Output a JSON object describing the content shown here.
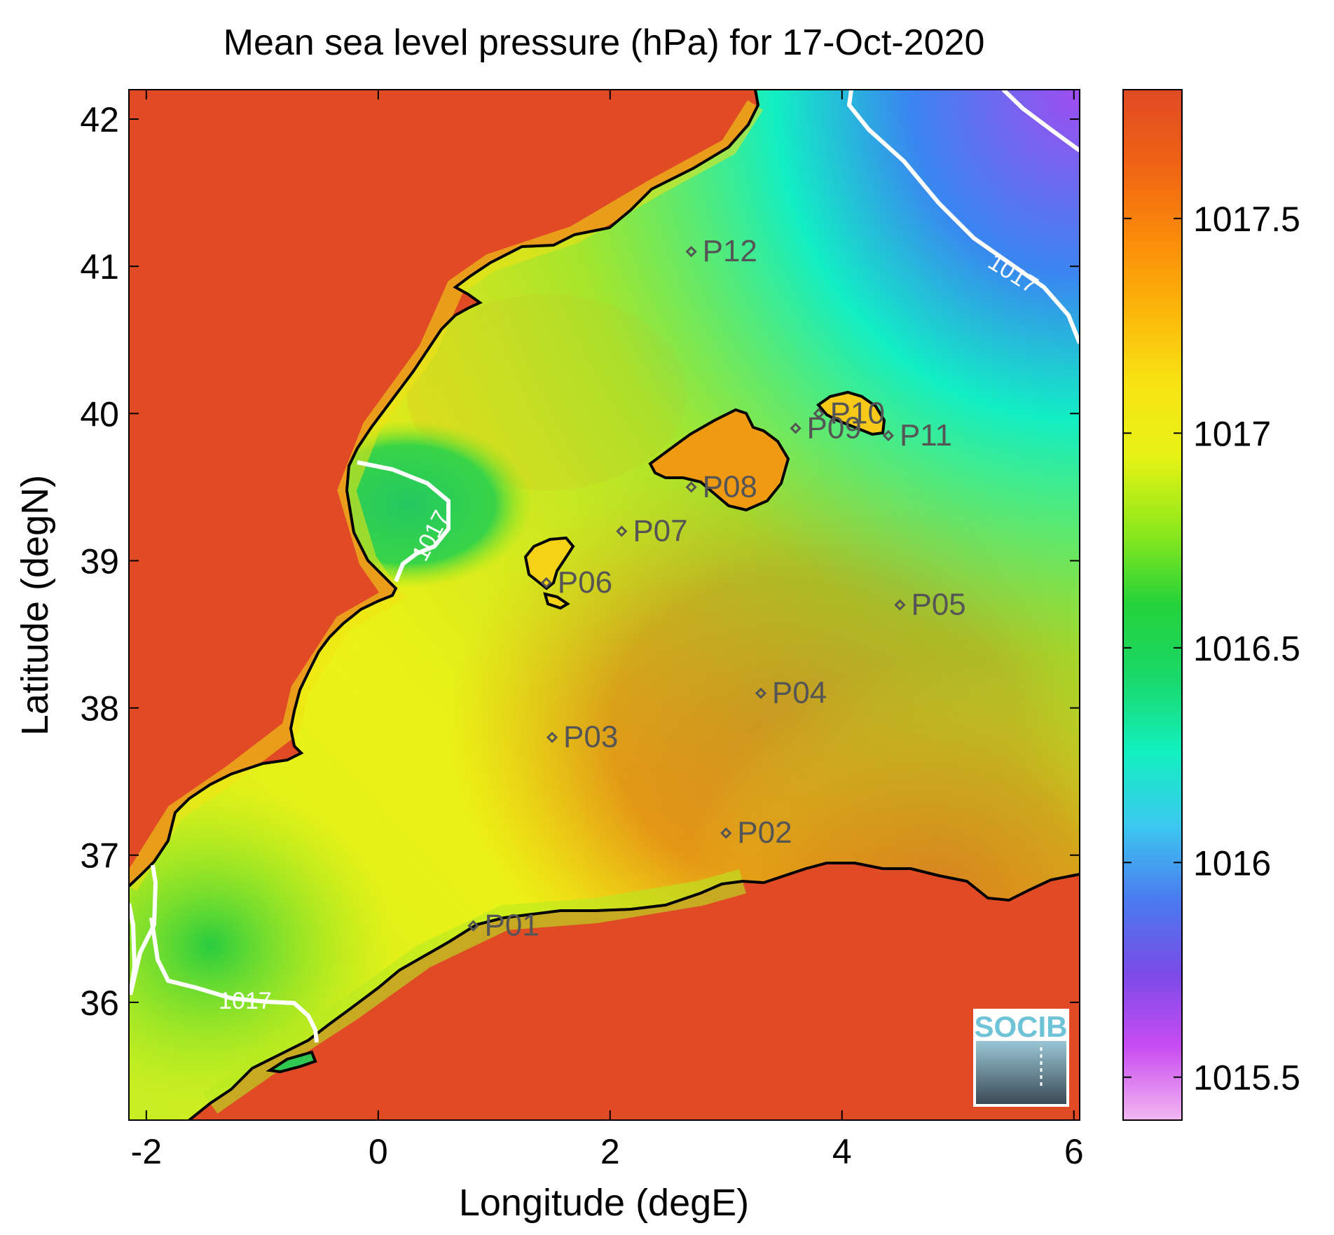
{
  "title": "Mean sea level pressure (hPa) for 17-Oct-2020",
  "x_axis": {
    "label": "Longitude (degE)",
    "range": [
      -2.15,
      6.05
    ],
    "ticks": [
      -2,
      0,
      2,
      4,
      6
    ],
    "tick_labels": [
      "-2",
      "0",
      "2",
      "4",
      "6"
    ]
  },
  "y_axis": {
    "label": "Latitude (degN)",
    "range": [
      35.2,
      42.2
    ],
    "ticks": [
      36,
      37,
      38,
      39,
      40,
      41,
      42
    ],
    "tick_labels": [
      "36",
      "37",
      "38",
      "39",
      "40",
      "41",
      "42"
    ]
  },
  "colorbar": {
    "range": [
      1015.4,
      1017.8
    ],
    "ticks": [
      1015.5,
      1016,
      1016.5,
      1017,
      1017.5
    ],
    "tick_labels": [
      "1015.5",
      "1016",
      "1016.5",
      "1017",
      "1017.5"
    ],
    "colormap": [
      "#f2b8f0",
      "#c84cf2",
      "#7a4be8",
      "#4a7bf0",
      "#3cc8f0",
      "#12f0c0",
      "#1ad86a",
      "#24d23a",
      "#8ee81c",
      "#e6f214",
      "#f8e414",
      "#fbb60a",
      "#fb8a0a",
      "#ef6214",
      "#e04a24"
    ]
  },
  "contour_label": "1017",
  "points": [
    {
      "name": "P01",
      "lon": 0.82,
      "lat": 36.52
    },
    {
      "name": "P02",
      "lon": 3.0,
      "lat": 37.15
    },
    {
      "name": "P03",
      "lon": 1.5,
      "lat": 37.8
    },
    {
      "name": "P04",
      "lon": 3.3,
      "lat": 38.1
    },
    {
      "name": "P05",
      "lon": 4.5,
      "lat": 38.7
    },
    {
      "name": "P06",
      "lon": 1.45,
      "lat": 38.85
    },
    {
      "name": "P07",
      "lon": 2.1,
      "lat": 39.2
    },
    {
      "name": "P08",
      "lon": 2.7,
      "lat": 39.5
    },
    {
      "name": "P09",
      "lon": 3.6,
      "lat": 39.9
    },
    {
      "name": "P10",
      "lon": 3.8,
      "lat": 40.0
    },
    {
      "name": "P11",
      "lon": 4.4,
      "lat": 39.85
    },
    {
      "name": "P12",
      "lon": 2.7,
      "lat": 41.1
    }
  ],
  "logo": {
    "text": "SOCIB"
  },
  "colors": {
    "land": "#e04a24",
    "coastline": "#000000",
    "contour": "#ffffff",
    "marker": "#555555"
  }
}
